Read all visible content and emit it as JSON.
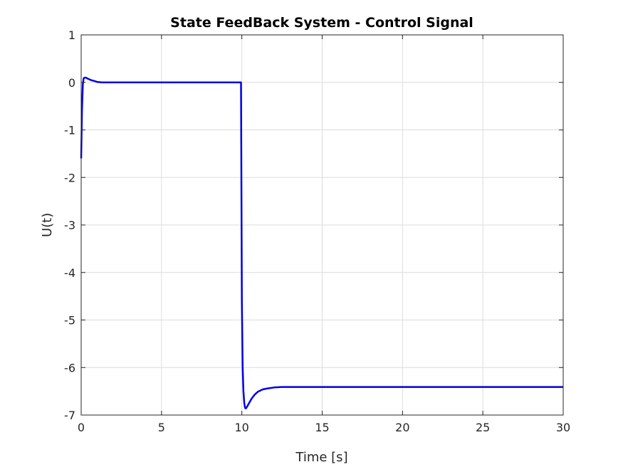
{
  "chart_data": {
    "type": "line",
    "title": "State FeedBack System - Control Signal",
    "xlabel": "Time [s]",
    "ylabel": "U(t)",
    "xlim": [
      0,
      30
    ],
    "ylim": [
      -7,
      1
    ],
    "xticks": [
      0,
      5,
      10,
      15,
      20,
      25,
      30
    ],
    "xtick_labels": [
      "0",
      "5",
      "10",
      "15",
      "20",
      "25",
      "30"
    ],
    "yticks": [
      1,
      0,
      -1,
      -2,
      -3,
      -4,
      -5,
      -6,
      -7
    ],
    "ytick_labels": [
      "1",
      "0",
      "-1",
      "-2",
      "-3",
      "-4",
      "-5",
      "-6",
      "-7"
    ],
    "grid": true,
    "legend": false,
    "series": [
      {
        "color": "#0000e6",
        "x": [
          0,
          0.05,
          0.1,
          0.15,
          0.2,
          0.3,
          0.4,
          0.6,
          0.8,
          1.0,
          1.3,
          1.6,
          2.0,
          3.0,
          5.0,
          8.0,
          9.95,
          10.0,
          10.05,
          10.1,
          10.15,
          10.2,
          10.25,
          10.3,
          10.4,
          10.6,
          10.8,
          11.0,
          11.3,
          11.6,
          12.0,
          12.5,
          13.0,
          14.0,
          16.0,
          20.0,
          25.0,
          30.0
        ],
        "y": [
          -1.6,
          -0.6,
          -0.05,
          0.08,
          0.1,
          0.1,
          0.08,
          0.05,
          0.03,
          0.01,
          0.0,
          0.0,
          0.0,
          0.0,
          0.0,
          0.0,
          0.0,
          -4.6,
          -6.0,
          -6.5,
          -6.75,
          -6.85,
          -6.86,
          -6.84,
          -6.78,
          -6.66,
          -6.57,
          -6.51,
          -6.46,
          -6.44,
          -6.42,
          -6.41,
          -6.41,
          -6.41,
          -6.41,
          -6.41,
          -6.41,
          -6.41
        ]
      }
    ]
  }
}
